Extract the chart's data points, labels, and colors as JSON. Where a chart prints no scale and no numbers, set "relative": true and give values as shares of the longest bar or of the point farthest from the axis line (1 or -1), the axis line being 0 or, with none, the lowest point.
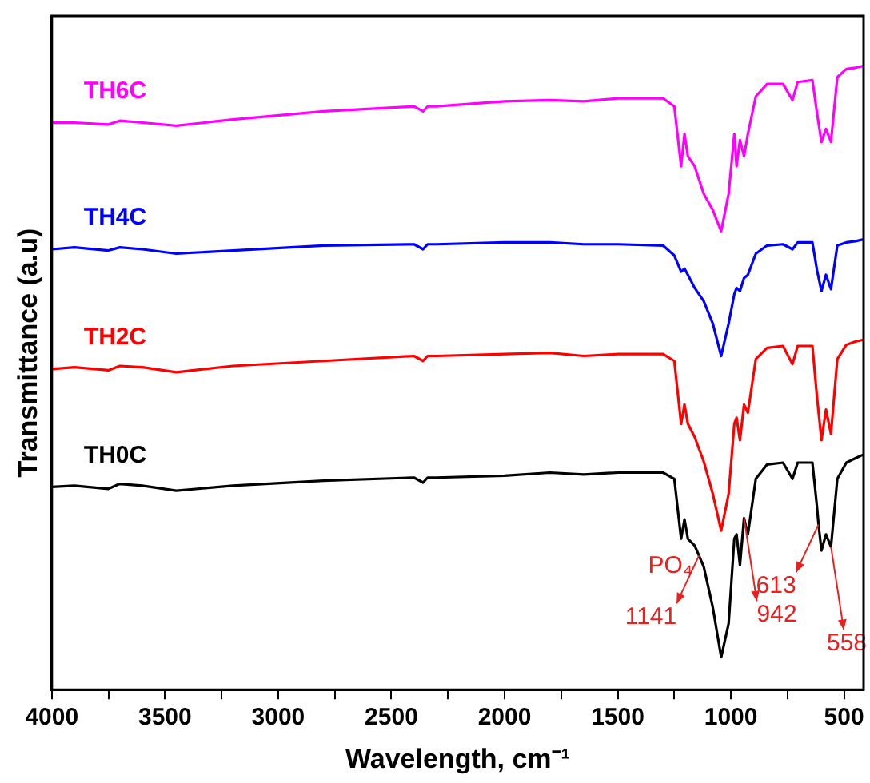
{
  "chart_data": {
    "type": "line",
    "relative": true,
    "xlabel": "Wavelength, cm⁻¹",
    "ylabel": "Transmittance (a.u)",
    "x": [
      4000,
      3900,
      3750,
      3700,
      3600,
      3450,
      3200,
      2800,
      2400,
      2360,
      2340,
      2300,
      2000,
      1800,
      1650,
      1500,
      1300,
      1250,
      1220,
      1205,
      1190,
      1160,
      1120,
      1080,
      1043,
      1010,
      985,
      975,
      960,
      942,
      925,
      890,
      840,
      770,
      728,
      705,
      640,
      620,
      600,
      580,
      558,
      530,
      490,
      450,
      414
    ],
    "xlim": [
      4000,
      414
    ],
    "xticks": [
      4000,
      {
        "value": 3750,
        "label": null
      },
      3500,
      {
        "value": 3250,
        "label": null
      },
      3000,
      {
        "value": 2750,
        "label": null
      },
      2500,
      {
        "value": 2250,
        "label": null
      },
      2000,
      {
        "value": 1750,
        "label": null
      },
      1500,
      {
        "value": 1250,
        "label": null
      },
      1000,
      {
        "value": 750,
        "label": null
      },
      500
    ],
    "series": [
      {
        "name": "TH6C",
        "color": "#ff00ff",
        "values": [
          0.909,
          0.909,
          0.906,
          0.912,
          0.909,
          0.904,
          0.914,
          0.927,
          0.935,
          0.927,
          0.935,
          0.935,
          0.943,
          0.945,
          0.943,
          0.948,
          0.948,
          0.935,
          0.839,
          0.891,
          0.855,
          0.839,
          0.795,
          0.769,
          0.735,
          0.795,
          0.891,
          0.839,
          0.881,
          0.855,
          0.891,
          0.951,
          0.971,
          0.971,
          0.945,
          0.974,
          0.977,
          0.925,
          0.878,
          0.899,
          0.878,
          0.982,
          0.995,
          0.997,
          1.0
        ]
      },
      {
        "name": "TH4C",
        "color": "#0000ff",
        "values": [
          0.706,
          0.709,
          0.704,
          0.709,
          0.706,
          0.699,
          0.704,
          0.712,
          0.714,
          0.706,
          0.714,
          0.714,
          0.717,
          0.717,
          0.714,
          0.714,
          0.712,
          0.696,
          0.67,
          0.675,
          0.665,
          0.644,
          0.623,
          0.587,
          0.535,
          0.587,
          0.634,
          0.644,
          0.639,
          0.66,
          0.665,
          0.699,
          0.712,
          0.714,
          0.706,
          0.717,
          0.717,
          0.673,
          0.639,
          0.665,
          0.642,
          0.712,
          0.717,
          0.719,
          0.722
        ]
      },
      {
        "name": "TH2C",
        "color": "#ff0000",
        "values": [
          0.514,
          0.517,
          0.512,
          0.519,
          0.517,
          0.509,
          0.519,
          0.527,
          0.535,
          0.527,
          0.535,
          0.535,
          0.538,
          0.54,
          0.535,
          0.538,
          0.538,
          0.527,
          0.426,
          0.457,
          0.426,
          0.405,
          0.366,
          0.314,
          0.255,
          0.314,
          0.426,
          0.436,
          0.4,
          0.457,
          0.444,
          0.53,
          0.548,
          0.551,
          0.522,
          0.551,
          0.551,
          0.47,
          0.4,
          0.449,
          0.41,
          0.53,
          0.553,
          0.558,
          0.561
        ]
      },
      {
        "name": "TH0C",
        "color": "#000000",
        "x": [
          4000,
          3900,
          3750,
          3700,
          3600,
          3450,
          3200,
          2800,
          2400,
          2360,
          2340,
          2300,
          2000,
          1800,
          1650,
          1500,
          1300,
          1250,
          1220,
          1205,
          1190,
          1160,
          1141,
          1120,
          1080,
          1043,
          1010,
          985,
          975,
          960,
          942,
          925,
          890,
          840,
          770,
          728,
          705,
          640,
          620,
          613,
          600,
          580,
          558,
          530,
          490,
          450,
          414
        ],
        "values": [
          0.325,
          0.327,
          0.322,
          0.33,
          0.327,
          0.319,
          0.327,
          0.335,
          0.34,
          0.332,
          0.34,
          0.34,
          0.343,
          0.348,
          0.345,
          0.348,
          0.348,
          0.338,
          0.242,
          0.273,
          0.242,
          0.231,
          0.215,
          0.197,
          0.132,
          0.052,
          0.106,
          0.242,
          0.249,
          0.2,
          0.275,
          0.249,
          0.338,
          0.361,
          0.364,
          0.338,
          0.364,
          0.364,
          0.294,
          0.265,
          0.223,
          0.249,
          0.229,
          0.338,
          0.364,
          0.371,
          0.377
        ]
      }
    ],
    "annotations": [
      "PO₄",
      {
        "text": "1141",
        "x": 1141,
        "y": 0.215
      },
      {
        "text": "942",
        "x": 942,
        "y": 0.275
      },
      {
        "text": "613",
        "x": 613,
        "y": 0.265
      },
      {
        "text": "558",
        "x": 558,
        "y": 0.229
      }
    ],
    "grid": false,
    "legend": false,
    "marker": "none",
    "line_style": "solid"
  }
}
